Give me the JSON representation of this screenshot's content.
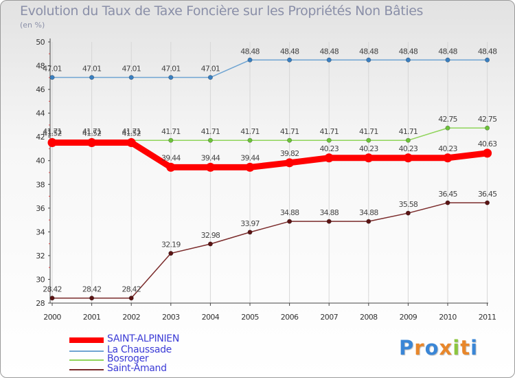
{
  "title": "Evolution du Taux de Taxe Foncière sur les Propriétés Non Bâties",
  "unit_label": "(en %)",
  "brand": {
    "name": "Proxiti",
    "letters": [
      "P",
      "r",
      "o",
      "x",
      "i",
      "t",
      "i"
    ],
    "colors": [
      "#3a86d6",
      "#e8872b",
      "#3a86d6",
      "#e8872b",
      "#8cc63f",
      "#e8872b",
      "#3a86d6"
    ]
  },
  "chart_data": {
    "type": "line",
    "title": "Evolution du Taux de Taxe Foncière sur les Propriétés Non Bâties",
    "ylabel": "(en %)",
    "xlabel": "",
    "categories": [
      "2000",
      "2001",
      "2002",
      "2003",
      "2004",
      "2005",
      "2006",
      "2007",
      "2008",
      "2009",
      "2010",
      "2011"
    ],
    "ylim": [
      28,
      50
    ],
    "yticks": [
      28,
      30,
      32,
      34,
      36,
      38,
      40,
      42,
      44,
      46,
      48,
      50
    ],
    "grid": "vertical",
    "series": [
      {
        "name": "SAINT-ALPINIEN",
        "color": "#ff0000",
        "emphasis": true,
        "values": [
          41.52,
          41.52,
          41.52,
          39.44,
          39.44,
          39.44,
          39.82,
          40.23,
          40.23,
          40.23,
          40.23,
          40.63
        ],
        "labels": [
          "41.52",
          "41.52",
          "41.52",
          "39.44",
          "39.44",
          "39.44",
          "39.82",
          "40.23",
          "40.23",
          "40.23",
          "40.23",
          "40.63"
        ]
      },
      {
        "name": "La Chaussade",
        "color": "#6fa4d2",
        "marker": "#3a7fc0",
        "values": [
          47.01,
          47.01,
          47.01,
          47.01,
          47.01,
          48.48,
          48.48,
          48.48,
          48.48,
          48.48,
          48.48,
          48.48
        ],
        "labels": [
          "47.01",
          "47.01",
          "47.01",
          "47.01",
          "47.01",
          "48.48",
          "48.48",
          "48.48",
          "48.48",
          "48.48",
          "48.48",
          "48.48"
        ]
      },
      {
        "name": "Bosroger",
        "color": "#8fd45a",
        "marker": "#6cc13a",
        "values": [
          41.71,
          41.71,
          41.71,
          41.71,
          41.71,
          41.71,
          41.71,
          41.71,
          41.71,
          41.71,
          42.75,
          42.75
        ],
        "labels": [
          "41.71",
          "41.71",
          "41.71",
          "41.71",
          "41.71",
          "41.71",
          "41.71",
          "41.71",
          "41.71",
          "41.71",
          "42.75",
          "42.75"
        ]
      },
      {
        "name": "Saint-Amand",
        "color": "#7a2a2a",
        "marker": "#5a1414",
        "values": [
          28.42,
          28.42,
          28.42,
          32.19,
          32.98,
          33.97,
          34.88,
          34.88,
          34.88,
          35.58,
          36.45,
          36.45
        ],
        "labels": [
          "28.42",
          "28.42",
          "28.42",
          "32.19",
          "32.98",
          "33.97",
          "34.88",
          "34.88",
          "34.88",
          "35.58",
          "36.45",
          "36.45"
        ]
      }
    ]
  }
}
